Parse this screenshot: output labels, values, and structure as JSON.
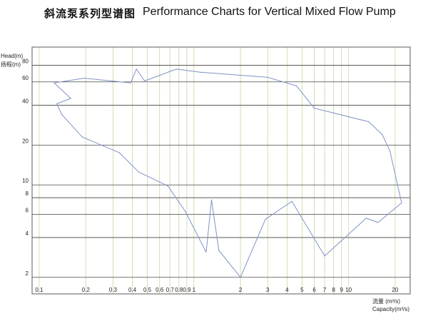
{
  "title_cn": "斜流泵系列型谱图",
  "title_en": "Performance Charts for Vertical Mixed Flow Pump",
  "chart_data": {
    "type": "line",
    "title": "Performance Charts for Vertical Mixed Flow Pump",
    "ylabel_en": "Head(m)",
    "ylabel_cn": "扬程(m)",
    "xlabel_cn": "流量 (m³/s)",
    "xlabel_en": "Capacity(m³/s)",
    "x_scale": "log",
    "y_scale": "log",
    "xlim": [
      0.09,
      25
    ],
    "ylim": [
      1.5,
      110
    ],
    "x_ticks": [
      {
        "value": 0.1,
        "label": "0.1"
      },
      {
        "value": 0.2,
        "label": "0.2"
      },
      {
        "value": 0.3,
        "label": "0.3"
      },
      {
        "value": 0.4,
        "label": "0.4"
      },
      {
        "value": 0.5,
        "label": "0.5"
      },
      {
        "value": 0.6,
        "label": "0.6"
      },
      {
        "value": 0.7,
        "label": "0.7"
      },
      {
        "value": 0.8,
        "label": "0.8"
      },
      {
        "value": 0.9,
        "label": "0.9"
      },
      {
        "value": 1,
        "label": "1"
      },
      {
        "value": 2,
        "label": "2"
      },
      {
        "value": 3,
        "label": "3"
      },
      {
        "value": 4,
        "label": "4"
      },
      {
        "value": 5,
        "label": "5"
      },
      {
        "value": 6,
        "label": "6"
      },
      {
        "value": 7,
        "label": "7"
      },
      {
        "value": 8,
        "label": "8"
      },
      {
        "value": 9,
        "label": "9"
      },
      {
        "value": 10,
        "label": "10"
      },
      {
        "value": 20,
        "label": "20"
      }
    ],
    "y_ticks": [
      {
        "value": 2,
        "label": "2"
      },
      {
        "value": 4,
        "label": "4"
      },
      {
        "value": 6,
        "label": "6"
      },
      {
        "value": 8,
        "label": "8"
      },
      {
        "value": 10,
        "label": "10"
      },
      {
        "value": 20,
        "label": "20"
      },
      {
        "value": 40,
        "label": "40"
      },
      {
        "value": 60,
        "label": "60"
      },
      {
        "value": 80,
        "label": "80"
      }
    ],
    "grid": true,
    "colors": {
      "envelope": "#7f93c6",
      "gridline": "#222222",
      "vertical_gridline": "#c9d6a0",
      "frame": "#333333"
    },
    "series": [
      {
        "values": [
          {
            "x": 0.125,
            "y": 59
          },
          {
            "x": 0.195,
            "y": 64
          },
          {
            "x": 0.39,
            "y": 59
          },
          {
            "x": 0.425,
            "y": 75
          },
          {
            "x": 0.48,
            "y": 61
          },
          {
            "x": 0.77,
            "y": 75
          },
          {
            "x": 1.1,
            "y": 71
          },
          {
            "x": 3.0,
            "y": 65
          },
          {
            "x": 4.6,
            "y": 56
          },
          {
            "x": 6.0,
            "y": 38
          },
          {
            "x": 13.5,
            "y": 30
          },
          {
            "x": 16.5,
            "y": 24
          },
          {
            "x": 18.5,
            "y": 18
          },
          {
            "x": 22.0,
            "y": 7.3
          },
          {
            "x": 15.5,
            "y": 5.2
          },
          {
            "x": 13.0,
            "y": 5.6
          },
          {
            "x": 7.0,
            "y": 2.9
          },
          {
            "x": 4.3,
            "y": 7.5
          },
          {
            "x": 2.9,
            "y": 5.5
          },
          {
            "x": 2.0,
            "y": 2.0
          },
          {
            "x": 1.45,
            "y": 3.2
          },
          {
            "x": 1.3,
            "y": 7.7
          },
          {
            "x": 1.2,
            "y": 3.1
          },
          {
            "x": 0.88,
            "y": 6.3
          },
          {
            "x": 0.68,
            "y": 9.8
          },
          {
            "x": 0.44,
            "y": 12.5
          },
          {
            "x": 0.33,
            "y": 17.5
          },
          {
            "x": 0.19,
            "y": 23
          },
          {
            "x": 0.14,
            "y": 34
          },
          {
            "x": 0.13,
            "y": 41
          },
          {
            "x": 0.16,
            "y": 45
          },
          {
            "x": 0.125,
            "y": 59
          }
        ]
      }
    ]
  }
}
